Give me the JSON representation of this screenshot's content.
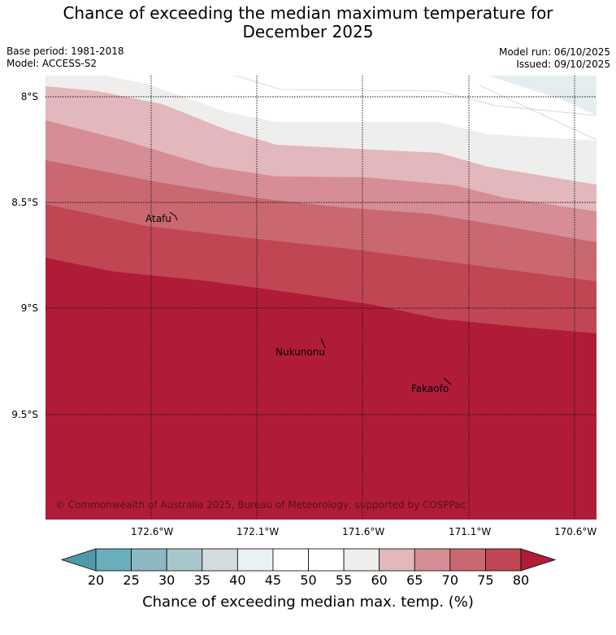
{
  "title_line1": "Chance of exceeding the median maximum temperature for",
  "title_line2": "December 2025",
  "base_period": "Base period: 1981-2018",
  "model": "Model: ACCESS-S2",
  "model_run": "Model run: 06/10/2025",
  "issued": "Issued: 09/10/2025",
  "latitudes": [
    "8°S",
    "8.5°S",
    "9°S",
    "9.5°S"
  ],
  "longitudes": [
    "172.6°W",
    "172.1°W",
    "171.6°W",
    "171.1°W",
    "170.6°W"
  ],
  "places": [
    "Atafu",
    "Nukunonu",
    "Fakaofo"
  ],
  "copyright": "© Commonwealth of Australia 2025, Bureau of Meteorology, supported by COSPPac",
  "colorbar": {
    "ticks": [
      "20",
      "25",
      "30",
      "35",
      "40",
      "45",
      "50",
      "55",
      "60",
      "65",
      "70",
      "75",
      "80"
    ],
    "colors": [
      "#4e9aa8",
      "#68aebb",
      "#8bb8c2",
      "#a9c7cb",
      "#d3dbdd",
      "#ebf1f3",
      "#ffffff",
      "#ffffff",
      "#efeeec",
      "#e2b8bc",
      "#d68d95",
      "#c96870",
      "#c14654",
      "#b01c38"
    ],
    "label": "Chance of exceeding median max. temp. (%)"
  }
}
